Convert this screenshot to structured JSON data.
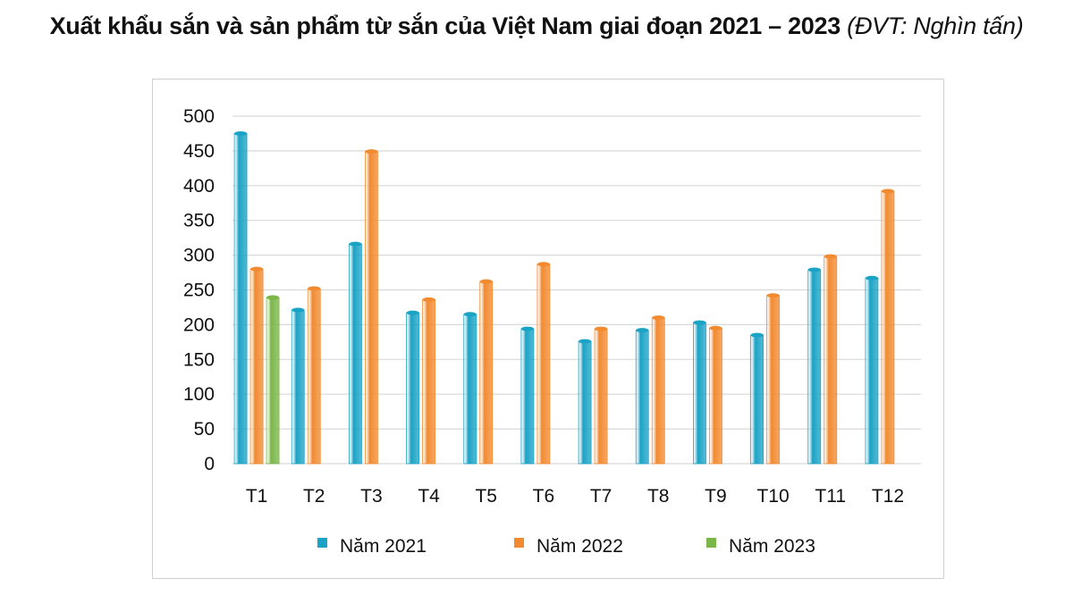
{
  "title": "Xuất khẩu sắn và sản phẩm từ sắn của Việt Nam  giai đoạn 2021 – 2023",
  "unit": "(ĐVT: Nghìn tấn)",
  "chart_data": {
    "type": "bar",
    "categories": [
      "T1",
      "T2",
      "T3",
      "T4",
      "T5",
      "T6",
      "T7",
      "T8",
      "T9",
      "T10",
      "T11",
      "T12"
    ],
    "series": [
      {
        "name": "Năm 2021",
        "color": "#1ba3c6",
        "values": [
          475,
          221,
          316,
          217,
          215,
          194,
          176,
          192,
          203,
          185,
          279,
          267
        ]
      },
      {
        "name": "Năm 2022",
        "color": "#f28a30",
        "values": [
          280,
          252,
          449,
          236,
          262,
          287,
          194,
          210,
          195,
          242,
          298,
          392
        ]
      },
      {
        "name": "Năm 2023",
        "color": "#7ab648",
        "values": [
          239,
          null,
          null,
          null,
          null,
          null,
          null,
          null,
          null,
          null,
          null,
          null
        ]
      }
    ],
    "ylim": [
      0,
      500
    ],
    "yticks": [
      0,
      50,
      100,
      150,
      200,
      250,
      300,
      350,
      400,
      450,
      500
    ],
    "grid": true,
    "legend": "bottom"
  }
}
